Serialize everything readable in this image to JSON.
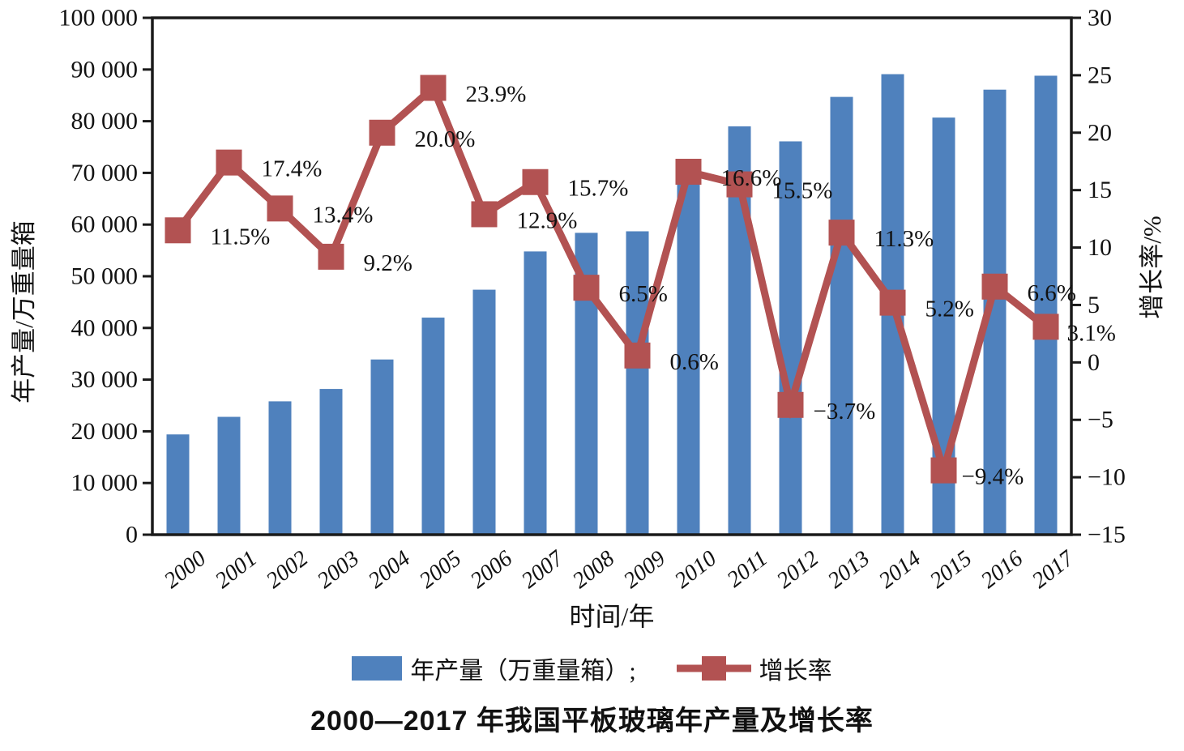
{
  "page": {
    "background": "#ffffff"
  },
  "chart_data": {
    "type": "bar+line",
    "title": "2000—2017 年我国平板玻璃年产量及增长率",
    "xlabel": "时间/年",
    "ylabel_left": "年产量/万重量箱",
    "ylabel_right": "增长率/%",
    "categories": [
      "2000",
      "2001",
      "2002",
      "2003",
      "2004",
      "2005",
      "2006",
      "2007",
      "2008",
      "2009",
      "2010",
      "2011",
      "2012",
      "2013",
      "2014",
      "2015",
      "2016",
      "2017"
    ],
    "bar_series": {
      "name": "年产量（万重量箱）;",
      "color": "#4f81bd",
      "values": [
        19400,
        22800,
        25800,
        28200,
        33900,
        42000,
        47400,
        54800,
        58400,
        58700,
        68400,
        79000,
        76100,
        84700,
        89100,
        80700,
        86100,
        88800
      ]
    },
    "line_series": {
      "name": "增长率",
      "color": "#b25252",
      "values": [
        11.5,
        17.4,
        13.4,
        9.2,
        20.0,
        23.9,
        12.9,
        15.7,
        6.5,
        0.6,
        16.6,
        15.5,
        -3.7,
        11.3,
        5.2,
        -9.4,
        6.6,
        3.1
      ],
      "point_labels": [
        "11.5%",
        "17.4%",
        "13.4%",
        "9.2%",
        "20.0%",
        "23.9%",
        "12.9%",
        "15.7%",
        "6.5%",
        "0.6%",
        "16.6%",
        "15.5%",
        "−3.7%",
        "11.3%",
        "5.2%",
        "−9.4%",
        "6.6%",
        "3.1%"
      ]
    },
    "left_axis": {
      "min": 0,
      "max": 100000,
      "step": 10000,
      "tick_labels": [
        "0",
        "10 000",
        "20 000",
        "30 000",
        "40 000",
        "50 000",
        "60 000",
        "70 000",
        "80 000",
        "90 000",
        "100 000"
      ]
    },
    "right_axis": {
      "min": -15,
      "max": 30,
      "step": 5,
      "tick_labels": [
        "30",
        "25",
        "20",
        "15",
        "10",
        "5",
        "0",
        "−5",
        "−10",
        "−15"
      ]
    },
    "legend": {
      "bar_label": "年产量（万重量箱）;",
      "line_label": "增长率"
    },
    "axis_color": "#1a1a1a",
    "text_color": "#111111"
  }
}
